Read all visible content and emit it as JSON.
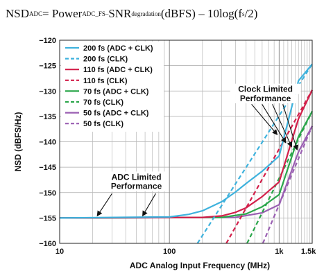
{
  "equation": {
    "nsd": "NSD",
    "nsd_sub": "ADC",
    "eq1": " = Power",
    "power_sub": "ADC_FS–",
    "snr": " SNR",
    "snr_sub": "degradation",
    "tail1": "(dBFS) – 10log(f",
    "fs_sub": "s",
    "tail2": "/2)"
  },
  "chart_data": {
    "type": "line",
    "xlabel": "ADC Analog Input Frequency (MHz)",
    "ylabel": "NSD (dBFS/Hz)",
    "xscale": "log",
    "xlim": [
      10,
      2000
    ],
    "ylim": [
      -160,
      -120
    ],
    "x_tick_labels": [
      "10",
      "100",
      "1k",
      "1.5k"
    ],
    "y_ticks": [
      -160,
      -155,
      -150,
      -145,
      -140,
      -135,
      -130,
      -125,
      -120
    ],
    "grid": true,
    "legend_position": "top-left",
    "annotations": [
      {
        "text": "ADC Limited",
        "x": 50,
        "y": -147.5
      },
      {
        "text": "Performance",
        "x": 50,
        "y": -149.3
      },
      {
        "text": "Clock Limited",
        "x": 750,
        "y": -130.2
      },
      {
        "text": "Performance",
        "x": 750,
        "y": -132.0
      }
    ],
    "series": [
      {
        "name": "200 fs (ADC + CLK)",
        "color": "#3eb2dd",
        "dash": false,
        "x": [
          10,
          100,
          150,
          200,
          300,
          400,
          500,
          700,
          1000,
          1500,
          2000
        ],
        "y": [
          -155,
          -154.8,
          -154.3,
          -153.6,
          -151.8,
          -149.9,
          -148.2,
          -145.8,
          -142.8,
          -128.0,
          -124.7
        ]
      },
      {
        "name": "200 fs (CLK)",
        "color": "#3eb2dd",
        "dash": true,
        "x": [
          180,
          2000
        ],
        "y": [
          -160,
          -124.7
        ]
      },
      {
        "name": "110 fs (ADC + CLK)",
        "color": "#d31f4a",
        "dash": false,
        "x": [
          10,
          200,
          300,
          400,
          500,
          700,
          1000,
          1500,
          2000
        ],
        "y": [
          -155,
          -154.9,
          -154.6,
          -153.9,
          -153.0,
          -150.8,
          -147.9,
          -135.5,
          -129.8
        ]
      },
      {
        "name": "110 fs (CLK)",
        "color": "#d31f4a",
        "dash": true,
        "x": [
          330,
          2000
        ],
        "y": [
          -160,
          -129.8
        ]
      },
      {
        "name": "70 fs (ADC + CLK)",
        "color": "#2aa64a",
        "dash": false,
        "x": [
          10,
          300,
          500,
          700,
          1000,
          1500,
          2000
        ],
        "y": [
          -155,
          -154.9,
          -154.2,
          -152.8,
          -150.4,
          -139.0,
          -134.0
        ]
      },
      {
        "name": "70 fs (CLK)",
        "color": "#2aa64a",
        "dash": true,
        "x": [
          510,
          2000
        ],
        "y": [
          -160,
          -134.0
        ]
      },
      {
        "name": "50 fs (ADC + CLK)",
        "color": "#9a5fb2",
        "dash": false,
        "x": [
          10,
          400,
          700,
          1000,
          1500,
          2000
        ],
        "y": [
          -155,
          -154.9,
          -154.0,
          -152.4,
          -142.0,
          -136.9
        ]
      },
      {
        "name": "50 fs (CLK)",
        "color": "#9a5fb2",
        "dash": true,
        "x": [
          710,
          2000
        ],
        "y": [
          -160,
          -136.9
        ]
      }
    ]
  }
}
